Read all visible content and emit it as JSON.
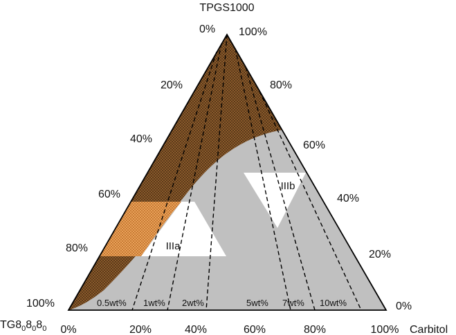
{
  "diagram": {
    "type": "ternary phase diagram",
    "vertices": {
      "top": "TPGS1000",
      "left": "TG8",
      "left_subscript_parts": [
        "0",
        "8",
        "0",
        "8",
        "0"
      ],
      "right": "Carbitol"
    },
    "scales": {
      "left_edge_ticks": [
        "0%",
        "20%",
        "40%",
        "60%",
        "80%",
        "100%"
      ],
      "right_edge_ticks": [
        "100%",
        "80%",
        "60%",
        "40%",
        "20%",
        "0%"
      ],
      "bottom_edge_ticks": [
        "0%",
        "20%",
        "40%",
        "60%",
        "80%",
        "100%"
      ]
    },
    "regions": {
      "IIIa": "IIIa",
      "IIIb": "IIIb"
    },
    "dilution_lines": [
      "0.5wt%",
      "1wt%",
      "2wt%",
      "5wt%",
      "7wt%",
      "10wt%"
    ],
    "colors": {
      "brown_region": "#8b5a2b",
      "orange_region": "#e0924a",
      "gray_region": "#c0c0c0",
      "white_region": "#ffffff",
      "outline": "#000000"
    }
  }
}
